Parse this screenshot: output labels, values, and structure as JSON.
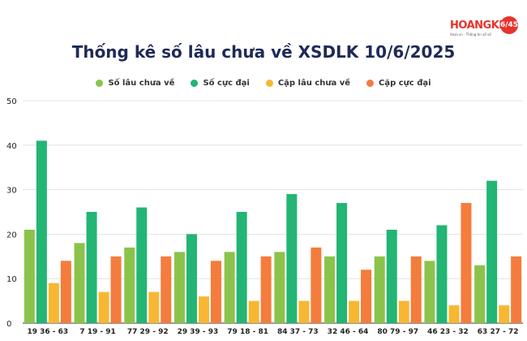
{
  "logo": {
    "text": "HOANGKIM",
    "badge": "6/45",
    "subtitle": "Xoso.vn - Thông tin xổ số"
  },
  "chart_data": {
    "type": "bar",
    "title": "Thống kê số lâu chưa về XSDLK 10/6/2025",
    "categories": [
      "19 36 - 63",
      "7 19 - 91",
      "77 29 - 92",
      "29 39 - 93",
      "79 18 - 81",
      "84 37 - 73",
      "32 46 - 64",
      "80 79 - 97",
      "46 23 - 32",
      "63 27 - 72"
    ],
    "series": [
      {
        "name": "Số lâu chưa về",
        "color": "#8bc34a",
        "values": [
          21,
          18,
          17,
          16,
          16,
          16,
          15,
          15,
          14,
          13
        ]
      },
      {
        "name": "Số cực đại",
        "color": "#22b573",
        "values": [
          41,
          25,
          26,
          20,
          25,
          29,
          27,
          21,
          22,
          32
        ]
      },
      {
        "name": "Cặp lâu chưa về",
        "color": "#f7b733",
        "values": [
          9,
          7,
          7,
          6,
          5,
          5,
          5,
          5,
          4,
          4
        ]
      },
      {
        "name": "Cặp cực đại",
        "color": "#f47c3c",
        "values": [
          14,
          15,
          15,
          14,
          15,
          17,
          12,
          15,
          27,
          15
        ]
      }
    ],
    "ylim": [
      0,
      50
    ],
    "yticks": [
      0,
      10,
      20,
      30,
      40,
      50
    ],
    "grid": true,
    "legend_position": "top"
  }
}
